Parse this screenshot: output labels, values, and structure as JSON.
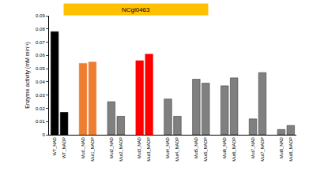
{
  "chart_data": {
    "type": "bar",
    "title": "NCgl0463",
    "y_label": "Enzyme activity (mM min⁻¹)",
    "categories": [
      "WT_NAD",
      "WT_NADP",
      null,
      "Mut1_NAD",
      "Mut1_NADP",
      null,
      "Mut2_NAD",
      "Mut2_NADP",
      null,
      "Mut3_NAD",
      "Mut3_NADP",
      null,
      "Mut4_NAD",
      "Mut4_NADP",
      null,
      "Mut5_NAD",
      "Mut5_NADP",
      null,
      "Mut6_NAD",
      "Mut6_NADP",
      null,
      "Mut7_NAD",
      "Mut7_NADP",
      null,
      "Mut8_NAD",
      "Mut8_NADP"
    ],
    "values": [
      0.078,
      0.017,
      null,
      0.054,
      0.055,
      null,
      0.025,
      0.014,
      null,
      0.056,
      0.061,
      null,
      0.027,
      0.014,
      null,
      0.042,
      0.039,
      null,
      0.037,
      0.043,
      null,
      0.012,
      0.047,
      null,
      0.004,
      0.007
    ],
    "colors": [
      "#000000",
      "#000000",
      null,
      "#ed7d31",
      "#ed7d31",
      null,
      "#808080",
      "#808080",
      null,
      "#ff0000",
      "#ff0000",
      null,
      "#808080",
      "#808080",
      null,
      "#808080",
      "#808080",
      null,
      "#808080",
      "#808080",
      null,
      "#808080",
      "#808080",
      null,
      "#808080",
      "#808080"
    ],
    "ylim": [
      0,
      0.09
    ],
    "yticks": [
      0,
      0.01,
      0.02,
      0.03,
      0.04,
      0.05,
      0.06,
      0.07,
      0.08,
      0.09
    ],
    "grid": false
  }
}
